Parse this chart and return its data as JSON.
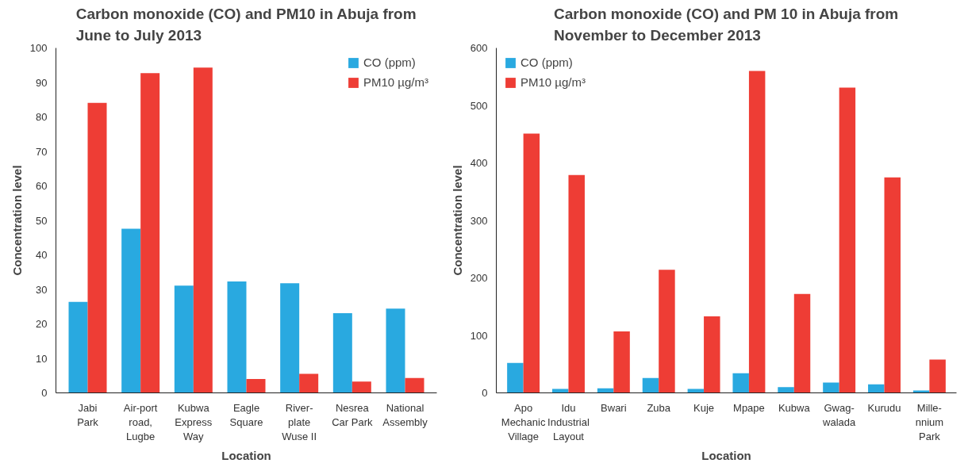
{
  "chart_data": [
    {
      "type": "bar",
      "title": "Carbon monoxide (CO) and PM10 in Abuja from June to July 2013",
      "xlabel": "Location",
      "ylabel": "Concentration level",
      "categories": [
        "Jabi Park",
        "Air-port road, Lugbe",
        "Kubwa Express Way",
        "Eagle Square",
        "River-plate Wuse II",
        "Nesrea Car Park",
        "National Assembly"
      ],
      "series": [
        {
          "name": "CO (ppm)",
          "color": "#29a9e0",
          "values": [
            26.4,
            47.6,
            31.1,
            32.3,
            31.8,
            23.1,
            24.4
          ]
        },
        {
          "name": "PM10 µg/m³",
          "color": "#ee3d35",
          "values": [
            84.1,
            92.7,
            94.3,
            4.0,
            5.5,
            3.3,
            4.3
          ]
        }
      ],
      "ylim": [
        0,
        100
      ],
      "yticks": [
        0,
        10,
        20,
        30,
        40,
        50,
        60,
        70,
        80,
        90,
        100
      ],
      "grid": false,
      "legend": "top right"
    },
    {
      "type": "bar",
      "title": "Carbon monoxide (CO) and PM 10 in Abuja from November to December 2013",
      "xlabel": "Location",
      "ylabel": "Concentration level",
      "categories": [
        "Apo Mechanic Village",
        "Idu Industrial Layout",
        "Bwari",
        "Zuba",
        "Kuje",
        "Mpape",
        "Kubwa",
        "Gwag-walada",
        "Kurudu",
        "Mille-nnium Park"
      ],
      "series": [
        {
          "name": "CO (ppm)",
          "color": "#29a9e0",
          "values": [
            52,
            7,
            8,
            26,
            7,
            34,
            10,
            18,
            15,
            4
          ]
        },
        {
          "name": "PM10 µg/m³",
          "color": "#ee3d35",
          "values": [
            451,
            379,
            107,
            214,
            133,
            560,
            172,
            531,
            375,
            58
          ]
        }
      ],
      "ylim": [
        0,
        600
      ],
      "yticks": [
        0,
        100,
        200,
        300,
        400,
        500,
        600
      ],
      "grid": false,
      "legend": "top left"
    }
  ]
}
